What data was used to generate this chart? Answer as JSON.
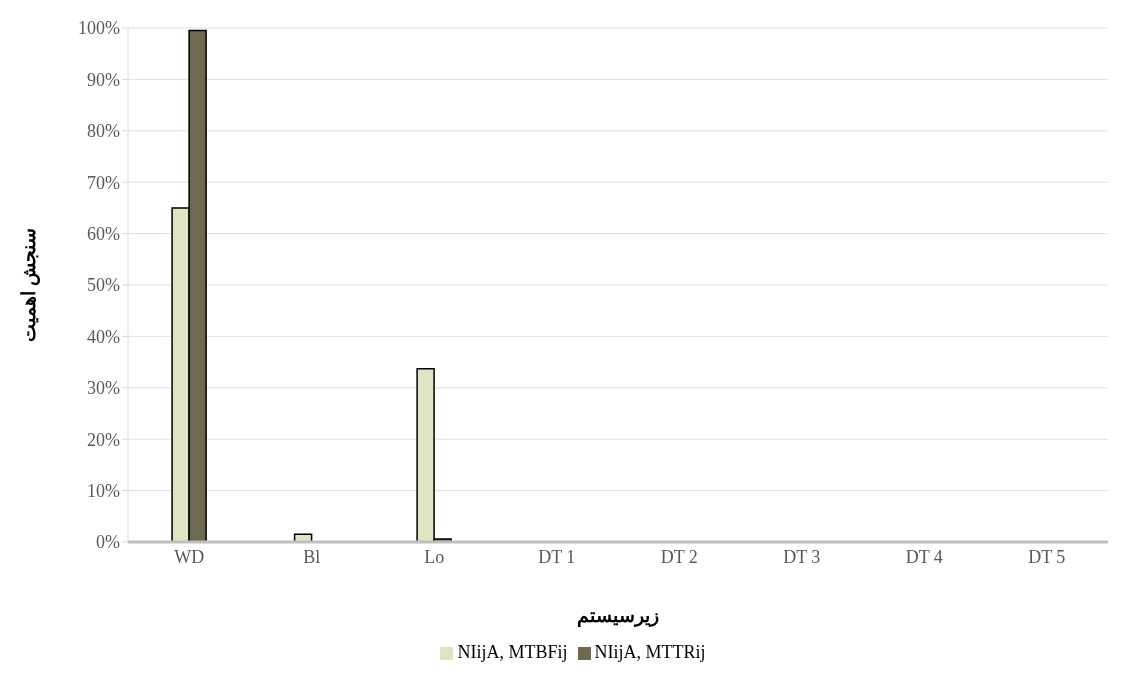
{
  "chart_data": {
    "type": "bar",
    "xlabel": "زیرسیستم",
    "ylabel": "سنجش اهمیت",
    "categories": [
      "WD",
      "Bl",
      "Lo",
      "DT 1",
      "DT 2",
      "DT 3",
      "DT 4",
      "DT 5"
    ],
    "series": [
      {
        "name": "NIijA, MTBFij",
        "color": "#dde5c4",
        "values": [
          65,
          1.5,
          33.7,
          0,
          0,
          0,
          0,
          0
        ]
      },
      {
        "name": "NIijA, MTTRij",
        "color": "#6e6a52",
        "values": [
          99.5,
          0,
          0.6,
          0,
          0,
          0,
          0,
          0
        ]
      }
    ],
    "ylim": [
      0,
      100
    ],
    "yticks": [
      {
        "value": 0,
        "label": "0%"
      },
      {
        "value": 10,
        "label": "10%"
      },
      {
        "value": 20,
        "label": "20%"
      },
      {
        "value": 30,
        "label": "30%"
      },
      {
        "value": 40,
        "label": "40%"
      },
      {
        "value": 50,
        "label": "50%"
      },
      {
        "value": 60,
        "label": "60%"
      },
      {
        "value": 70,
        "label": "70%"
      },
      {
        "value": 80,
        "label": "80%"
      },
      {
        "value": 90,
        "label": "90%"
      },
      {
        "value": 100,
        "label": "100%"
      }
    ],
    "grid": "y",
    "legend": "bottom"
  }
}
